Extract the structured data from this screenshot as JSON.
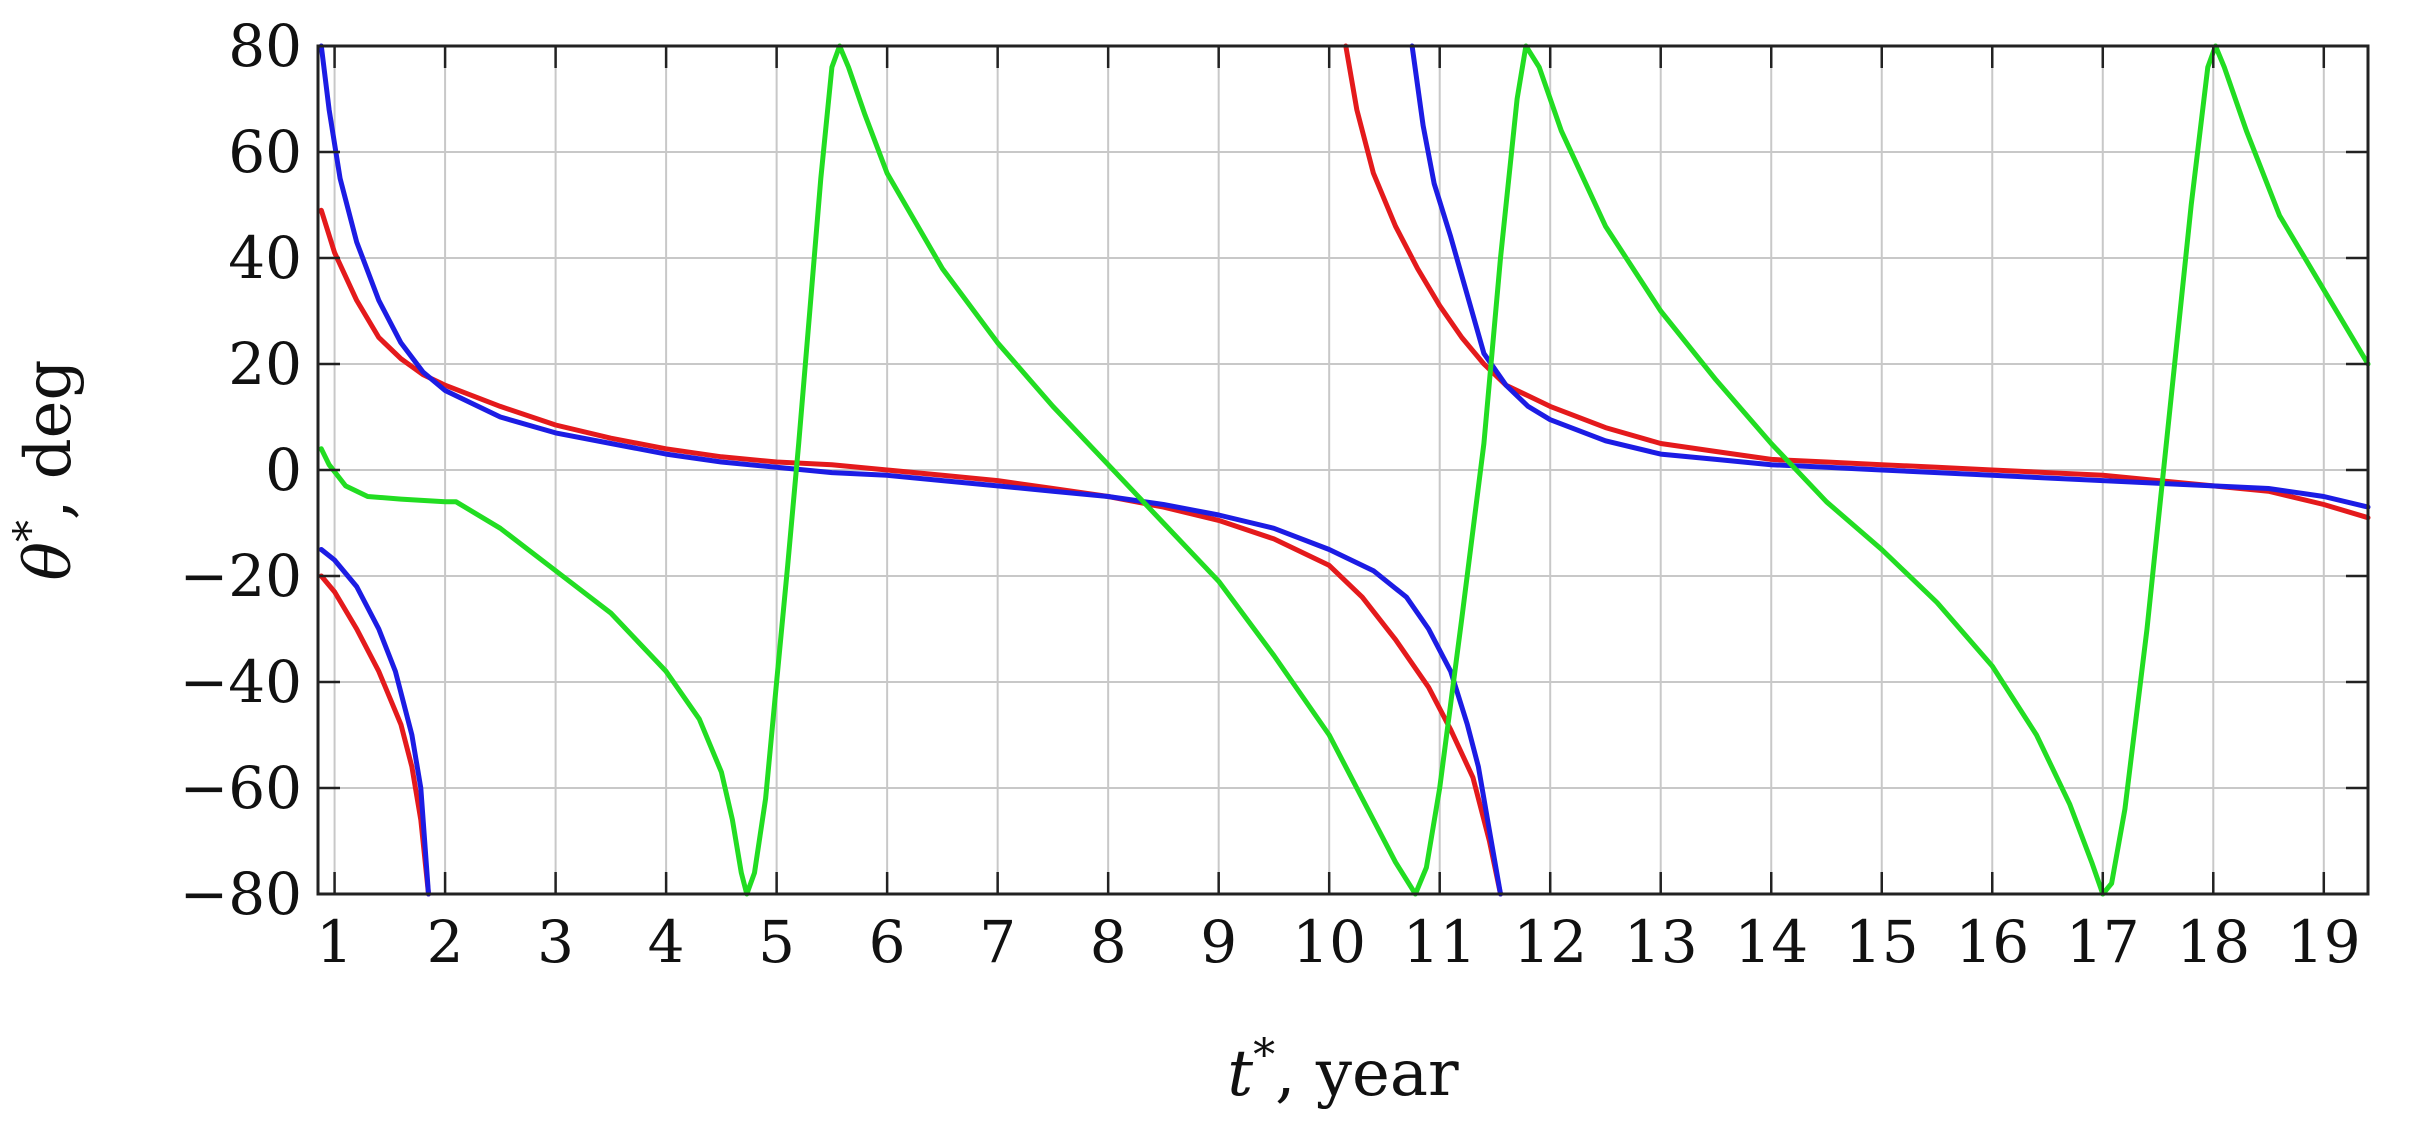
{
  "chart_data": {
    "type": "line",
    "xlabel": {
      "symbol": "t",
      "sup": "*",
      "rest": ", year"
    },
    "ylabel": {
      "symbol": "θ",
      "sup": "*",
      "rest": ", deg"
    },
    "xlim": [
      0.85,
      19.4
    ],
    "ylim": [
      -80,
      80
    ],
    "xticks": [
      1,
      2,
      3,
      4,
      5,
      6,
      7,
      8,
      9,
      10,
      11,
      12,
      13,
      14,
      15,
      16,
      17,
      18,
      19
    ],
    "yticks": [
      -80,
      -60,
      -40,
      -20,
      0,
      20,
      40,
      60,
      80
    ],
    "ytick_labels": [
      "−80",
      "−60",
      "−40",
      "−20",
      "0",
      "20",
      "40",
      "60",
      "80"
    ],
    "grid": true,
    "series": [
      {
        "color": "#e41a1c",
        "segments": [
          [
            [
              0.88,
              49
            ],
            [
              1.0,
              41
            ],
            [
              1.2,
              32
            ],
            [
              1.4,
              25
            ],
            [
              1.6,
              21
            ],
            [
              1.8,
              18
            ],
            [
              2.0,
              16
            ],
            [
              2.5,
              12
            ],
            [
              3,
              8.5
            ],
            [
              3.5,
              6
            ],
            [
              4,
              4
            ],
            [
              4.5,
              2.5
            ],
            [
              5,
              1.5
            ],
            [
              5.5,
              1
            ],
            [
              6,
              0
            ],
            [
              6.5,
              -1
            ],
            [
              7,
              -2
            ],
            [
              7.5,
              -3.5
            ],
            [
              8,
              -5
            ],
            [
              8.5,
              -7
            ],
            [
              9,
              -9.5
            ],
            [
              9.5,
              -13
            ],
            [
              10,
              -18
            ],
            [
              10.3,
              -24
            ],
            [
              10.6,
              -32
            ],
            [
              10.9,
              -41
            ],
            [
              11.1,
              -49
            ],
            [
              11.3,
              -58
            ],
            [
              11.45,
              -70
            ],
            [
              11.55,
              -80
            ]
          ],
          [
            [
              0.88,
              -20
            ],
            [
              1.0,
              -23
            ],
            [
              1.2,
              -30
            ],
            [
              1.4,
              -38
            ],
            [
              1.6,
              -48
            ],
            [
              1.7,
              -56
            ],
            [
              1.78,
              -66
            ],
            [
              1.85,
              -80
            ]
          ],
          [
            [
              10.15,
              80
            ],
            [
              10.25,
              68
            ],
            [
              10.4,
              56
            ],
            [
              10.6,
              46
            ],
            [
              10.8,
              38
            ],
            [
              11.0,
              31
            ],
            [
              11.2,
              25
            ],
            [
              11.4,
              20
            ],
            [
              11.6,
              16
            ],
            [
              11.8,
              14
            ],
            [
              12.0,
              12
            ],
            [
              12.5,
              8
            ],
            [
              13,
              5
            ],
            [
              13.5,
              3.5
            ],
            [
              14,
              2
            ],
            [
              14.5,
              1.5
            ],
            [
              15,
              1
            ],
            [
              15.5,
              0.5
            ],
            [
              16,
              0
            ],
            [
              16.5,
              -0.5
            ],
            [
              17,
              -1
            ],
            [
              17.5,
              -2
            ],
            [
              18,
              -3
            ],
            [
              18.5,
              -4
            ],
            [
              19,
              -6.5
            ],
            [
              19.4,
              -9
            ]
          ]
        ]
      },
      {
        "color": "#1c1ce4",
        "segments": [
          [
            [
              0.88,
              80
            ],
            [
              0.95,
              68
            ],
            [
              1.05,
              55
            ],
            [
              1.2,
              43
            ],
            [
              1.4,
              32
            ],
            [
              1.6,
              24
            ],
            [
              1.8,
              18.5
            ],
            [
              2.0,
              15
            ],
            [
              2.5,
              10
            ],
            [
              3,
              7
            ],
            [
              3.5,
              5
            ],
            [
              4,
              3
            ],
            [
              4.5,
              1.5
            ],
            [
              5,
              0.5
            ],
            [
              5.5,
              -0.5
            ],
            [
              6,
              -1
            ],
            [
              6.5,
              -2
            ],
            [
              7,
              -3
            ],
            [
              7.5,
              -4
            ],
            [
              8,
              -5
            ],
            [
              8.5,
              -6.5
            ],
            [
              9,
              -8.5
            ],
            [
              9.5,
              -11
            ],
            [
              10,
              -15
            ],
            [
              10.4,
              -19
            ],
            [
              10.7,
              -24
            ],
            [
              10.9,
              -30
            ],
            [
              11.1,
              -38
            ],
            [
              11.25,
              -48
            ],
            [
              11.35,
              -56
            ],
            [
              11.45,
              -68
            ],
            [
              11.55,
              -80
            ]
          ],
          [
            [
              0.88,
              -15
            ],
            [
              1.0,
              -17
            ],
            [
              1.2,
              -22
            ],
            [
              1.4,
              -30
            ],
            [
              1.55,
              -38
            ],
            [
              1.7,
              -50
            ],
            [
              1.78,
              -60
            ],
            [
              1.85,
              -80
            ]
          ],
          [
            [
              10.75,
              80
            ],
            [
              10.85,
              65
            ],
            [
              10.95,
              54
            ],
            [
              11.1,
              44
            ],
            [
              11.25,
              33
            ],
            [
              11.4,
              22
            ],
            [
              11.6,
              16
            ],
            [
              11.8,
              12
            ],
            [
              12.0,
              9.5
            ],
            [
              12.5,
              5.5
            ],
            [
              13,
              3
            ],
            [
              13.5,
              2
            ],
            [
              14,
              1
            ],
            [
              14.5,
              0.5
            ],
            [
              15,
              0
            ],
            [
              15.5,
              -0.5
            ],
            [
              16,
              -1
            ],
            [
              16.5,
              -1.5
            ],
            [
              17,
              -2
            ],
            [
              17.5,
              -2.5
            ],
            [
              18,
              -3
            ],
            [
              18.5,
              -3.5
            ],
            [
              19,
              -5
            ],
            [
              19.4,
              -7
            ]
          ]
        ]
      },
      {
        "color": "#22dd22",
        "segments": [
          [
            [
              0.88,
              4
            ],
            [
              0.95,
              1
            ],
            [
              1.1,
              -3
            ],
            [
              1.3,
              -5
            ],
            [
              1.6,
              -5.5
            ],
            [
              2.0,
              -6
            ],
            [
              2.1,
              -6
            ],
            [
              2.5,
              -11
            ],
            [
              3,
              -19
            ],
            [
              3.5,
              -27
            ],
            [
              4,
              -38
            ],
            [
              4.3,
              -47
            ],
            [
              4.5,
              -57
            ],
            [
              4.6,
              -66
            ],
            [
              4.68,
              -76
            ],
            [
              4.73,
              -80
            ],
            [
              4.8,
              -76
            ],
            [
              4.9,
              -62
            ],
            [
              5.0,
              -40
            ],
            [
              5.1,
              -18
            ],
            [
              5.2,
              5
            ],
            [
              5.3,
              30
            ],
            [
              5.4,
              55
            ],
            [
              5.5,
              76
            ],
            [
              5.57,
              80
            ],
            [
              5.65,
              76
            ],
            [
              5.8,
              67
            ],
            [
              6,
              56
            ],
            [
              6.5,
              38
            ],
            [
              7,
              24
            ],
            [
              7.5,
              12
            ],
            [
              8,
              1
            ],
            [
              8.5,
              -10
            ],
            [
              9,
              -21
            ],
            [
              9.5,
              -35
            ],
            [
              10,
              -50
            ],
            [
              10.3,
              -62
            ],
            [
              10.6,
              -74
            ],
            [
              10.78,
              -80
            ],
            [
              10.88,
              -75
            ],
            [
              11.0,
              -60
            ],
            [
              11.2,
              -28
            ],
            [
              11.4,
              5
            ],
            [
              11.55,
              40
            ],
            [
              11.7,
              70
            ],
            [
              11.78,
              80
            ],
            [
              11.9,
              76
            ],
            [
              12.1,
              64
            ],
            [
              12.5,
              46
            ],
            [
              13,
              30
            ],
            [
              13.5,
              17
            ],
            [
              14,
              5
            ],
            [
              14.5,
              -6
            ],
            [
              15,
              -15
            ],
            [
              15.5,
              -25
            ],
            [
              16,
              -37
            ],
            [
              16.4,
              -50
            ],
            [
              16.7,
              -63
            ],
            [
              16.9,
              -74
            ],
            [
              17.0,
              -80
            ],
            [
              17.08,
              -78
            ],
            [
              17.2,
              -64
            ],
            [
              17.4,
              -30
            ],
            [
              17.6,
              10
            ],
            [
              17.8,
              50
            ],
            [
              17.95,
              76
            ],
            [
              18.02,
              80
            ],
            [
              18.1,
              76
            ],
            [
              18.3,
              64
            ],
            [
              18.6,
              48
            ],
            [
              19,
              34
            ],
            [
              19.4,
              20
            ]
          ]
        ]
      }
    ]
  }
}
